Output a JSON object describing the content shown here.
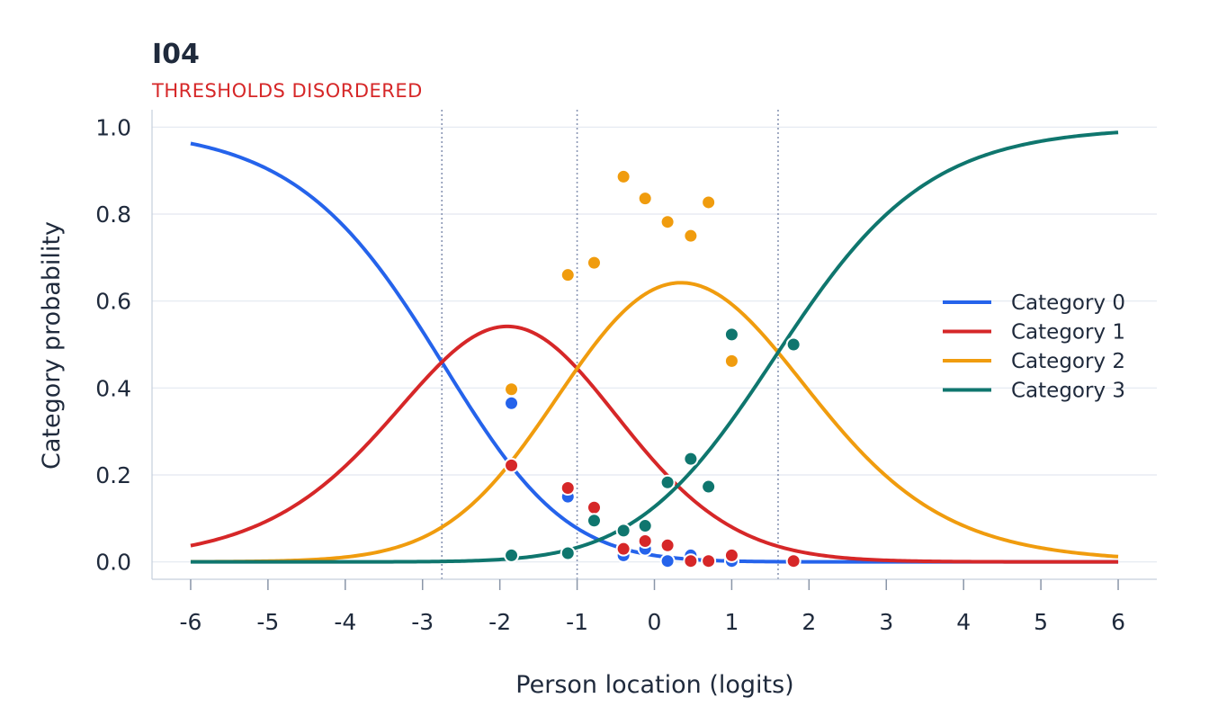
{
  "chart_data": {
    "type": "line",
    "title": "I04",
    "subtitle": "THRESHOLDS DISORDERED",
    "xlabel": "Person location (logits)",
    "ylabel": "Category probability",
    "xlim": [
      -6.5,
      6.5
    ],
    "ylim": [
      -0.04,
      1.04
    ],
    "x_ticks": [
      "-6",
      "-5",
      "-4",
      "-3",
      "-2",
      "-1",
      "0",
      "1",
      "2",
      "3",
      "4",
      "5",
      "6"
    ],
    "y_ticks": [
      "0.0",
      "0.2",
      "0.4",
      "0.6",
      "0.8",
      "1.0"
    ],
    "grid": "horizontal",
    "legend_position": "right",
    "thresholds": [
      -2.75,
      -1.0,
      1.6
    ],
    "series": [
      {
        "name": "Category 0",
        "color": "#2563eb",
        "points": [
          [
            -1.85,
            0.365
          ],
          [
            -1.12,
            0.15
          ],
          [
            -0.4,
            0.015
          ],
          [
            -0.12,
            0.03
          ],
          [
            0.17,
            0.002
          ],
          [
            0.47,
            0.015
          ],
          [
            1.0,
            0.002
          ]
        ]
      },
      {
        "name": "Category 1",
        "color": "#d62728",
        "points": [
          [
            -1.85,
            0.222
          ],
          [
            -1.12,
            0.17
          ],
          [
            -0.78,
            0.125
          ],
          [
            -0.4,
            0.03
          ],
          [
            -0.12,
            0.048
          ],
          [
            0.17,
            0.038
          ],
          [
            0.47,
            0.002
          ],
          [
            0.7,
            0.002
          ],
          [
            1.0,
            0.015
          ],
          [
            1.8,
            0.002
          ]
        ]
      },
      {
        "name": "Category 2",
        "color": "#f09c0e",
        "points": [
          [
            -1.85,
            0.397
          ],
          [
            -1.12,
            0.66
          ],
          [
            -0.78,
            0.688
          ],
          [
            -0.4,
            0.886
          ],
          [
            -0.12,
            0.836
          ],
          [
            0.17,
            0.782
          ],
          [
            0.47,
            0.75
          ],
          [
            0.7,
            0.827
          ],
          [
            1.0,
            0.462
          ]
        ]
      },
      {
        "name": "Category 3",
        "color": "#0f766e",
        "points": [
          [
            -1.85,
            0.015
          ],
          [
            -1.12,
            0.02
          ],
          [
            -0.78,
            0.095
          ],
          [
            -0.4,
            0.072
          ],
          [
            -0.12,
            0.083
          ],
          [
            0.17,
            0.183
          ],
          [
            0.47,
            0.237
          ],
          [
            0.7,
            0.173
          ],
          [
            1.0,
            0.523
          ],
          [
            1.8,
            0.5
          ]
        ]
      }
    ]
  }
}
